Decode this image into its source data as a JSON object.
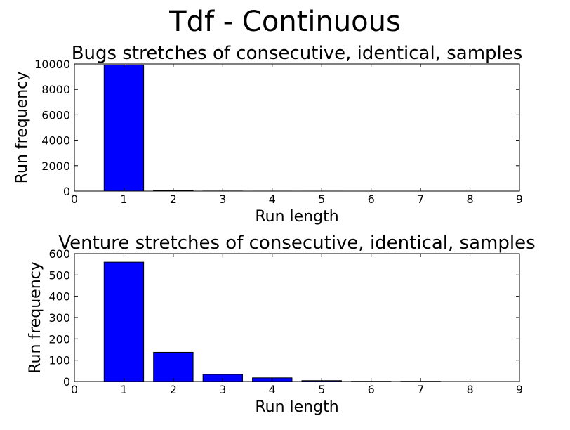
{
  "figure": {
    "suptitle": "Tdf - Continuous"
  },
  "chart_data": [
    {
      "type": "bar",
      "title": "Bugs stretches of consecutive, identical, samples",
      "xlabel": "Run length",
      "ylabel": "Run frequency",
      "x": [
        1,
        2,
        3,
        4,
        5,
        6,
        7,
        8
      ],
      "values": [
        9920,
        55,
        8,
        2,
        1,
        0,
        0,
        0
      ],
      "bar_color": "#0000ff",
      "xlim": [
        0,
        9
      ],
      "ylim": [
        0,
        10000
      ],
      "xticks": [
        0,
        1,
        2,
        3,
        4,
        5,
        6,
        7,
        8,
        9
      ],
      "yticks": [
        0,
        2000,
        4000,
        6000,
        8000,
        10000
      ]
    },
    {
      "type": "bar",
      "title": "Venture stretches of consecutive, identical, samples",
      "xlabel": "Run length",
      "ylabel": "Run frequency",
      "x": [
        1,
        2,
        3,
        4,
        5,
        6,
        7,
        8
      ],
      "values": [
        560,
        137,
        33,
        17,
        4,
        1,
        1,
        0
      ],
      "bar_color": "#0000ff",
      "xlim": [
        0,
        9
      ],
      "ylim": [
        0,
        600
      ],
      "xticks": [
        0,
        1,
        2,
        3,
        4,
        5,
        6,
        7,
        8,
        9
      ],
      "yticks": [
        0,
        100,
        200,
        300,
        400,
        500,
        600
      ]
    }
  ]
}
